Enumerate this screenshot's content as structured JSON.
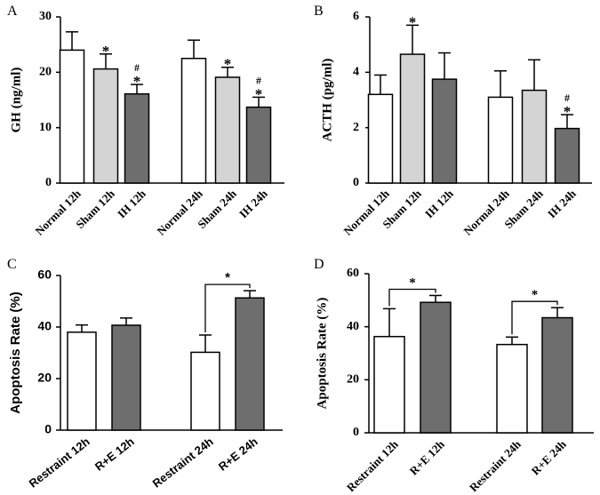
{
  "colors": {
    "white": "#ffffff",
    "light_gray": "#d4d4d4",
    "dark_gray": "#6e6e6e",
    "stroke": "#000000"
  },
  "chart_data": [
    {
      "panel_letter": "A",
      "type": "bar",
      "ylabel": "GH (ng/ml)",
      "ylim": [
        0,
        30
      ],
      "yticks": [
        0,
        10,
        20,
        30
      ],
      "categories": [
        "Normal 12h",
        "Sham 12h",
        "IH 12h",
        "Normal 24h",
        "Sham 24h",
        "IH 24h"
      ],
      "values": [
        24.0,
        20.6,
        16.1,
        22.5,
        19.1,
        13.7
      ],
      "errors": [
        3.3,
        2.7,
        1.7,
        3.3,
        1.8,
        1.8
      ],
      "fills": [
        "white",
        "light_gray",
        "dark_gray",
        "white",
        "light_gray",
        "dark_gray"
      ],
      "annotations": [
        "",
        "*",
        "#\n*",
        "",
        "*",
        "#\n*"
      ]
    },
    {
      "panel_letter": "B",
      "type": "bar",
      "ylabel": "ACTH (pg/ml)",
      "ylim": [
        0,
        6
      ],
      "yticks": [
        0,
        2,
        4,
        6
      ],
      "categories": [
        "Normal 12h",
        "Sham 12h",
        "IH 12h",
        "Normal 24h",
        "Sham 24h",
        "IH 24h"
      ],
      "values": [
        3.2,
        4.65,
        3.75,
        3.1,
        3.35,
        1.97
      ],
      "errors": [
        0.7,
        1.05,
        0.95,
        0.95,
        1.1,
        0.5
      ],
      "fills": [
        "white",
        "light_gray",
        "dark_gray",
        "white",
        "light_gray",
        "dark_gray"
      ],
      "annotations": [
        "",
        "*",
        "",
        "",
        "",
        "#\n*"
      ]
    },
    {
      "panel_letter": "C",
      "type": "bar",
      "ylabel": "Apoptosis Rate (%)",
      "ylim": [
        0,
        60
      ],
      "yticks": [
        0,
        20,
        40,
        60
      ],
      "categories": [
        "Restraint 12h",
        "R+E 12h",
        "Restraint 24h",
        "R+E 24h"
      ],
      "values": [
        38.0,
        40.7,
        30.2,
        51.3
      ],
      "errors": [
        2.8,
        2.8,
        6.7,
        2.8
      ],
      "fills": [
        "white",
        "dark_gray",
        "white",
        "dark_gray"
      ],
      "brackets": [
        {
          "from": 2,
          "to": 3,
          "label": "*"
        }
      ]
    },
    {
      "panel_letter": "D",
      "type": "bar",
      "ylabel": "Apoptosis Rate (%)",
      "ylim": [
        0,
        60
      ],
      "yticks": [
        0,
        20,
        40,
        60
      ],
      "categories": [
        "Restraint 12h",
        "R+E 12h",
        "Restraint 24h",
        "R+E 24h"
      ],
      "values": [
        36.3,
        49.2,
        33.3,
        43.4
      ],
      "errors": [
        10.5,
        2.6,
        2.8,
        3.8
      ],
      "fills": [
        "white",
        "dark_gray",
        "white",
        "dark_gray"
      ],
      "brackets": [
        {
          "from": 0,
          "to": 1,
          "label": "*"
        },
        {
          "from": 2,
          "to": 3,
          "label": "*"
        }
      ]
    }
  ]
}
